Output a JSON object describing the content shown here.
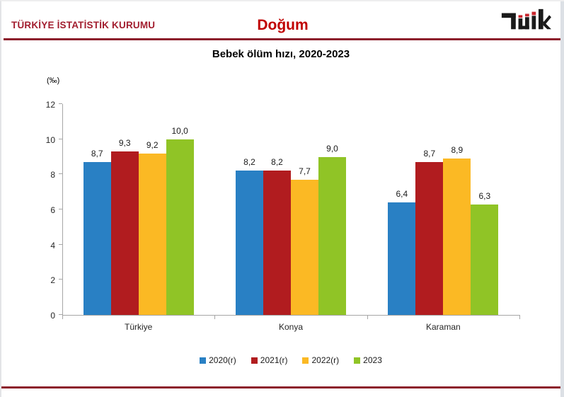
{
  "header": {
    "org_title": "TÜRKİYE İSTATİSTİK KURUMU",
    "page_title": "Doğum",
    "logo_name": "tuik-logo",
    "org_title_color": "#a21e2f",
    "page_title_color": "#c00000",
    "rule_color": "#8c1d2b"
  },
  "chart_data": {
    "type": "bar",
    "title": "Bebek ölüm hızı, 2020-2023",
    "unit_label": "(‰)",
    "categories": [
      "Türkiye",
      "Konya",
      "Karaman"
    ],
    "series": [
      {
        "name": "2020(r)",
        "color": "#2980c4",
        "values": [
          8.7,
          8.2,
          6.4
        ]
      },
      {
        "name": "2021(r)",
        "color": "#b11c1f",
        "values": [
          9.3,
          8.2,
          8.7
        ]
      },
      {
        "name": "2022(r)",
        "color": "#fbb924",
        "values": [
          9.2,
          7.7,
          8.9
        ]
      },
      {
        "name": "2023",
        "color": "#90c426",
        "values": [
          10.0,
          9.0,
          6.3
        ]
      }
    ],
    "ylim": [
      0,
      12
    ],
    "ytick_step": 2,
    "decimal_separator": ",",
    "grid": false,
    "legend_position": "bottom",
    "axis_color": "#a6a6a6"
  }
}
